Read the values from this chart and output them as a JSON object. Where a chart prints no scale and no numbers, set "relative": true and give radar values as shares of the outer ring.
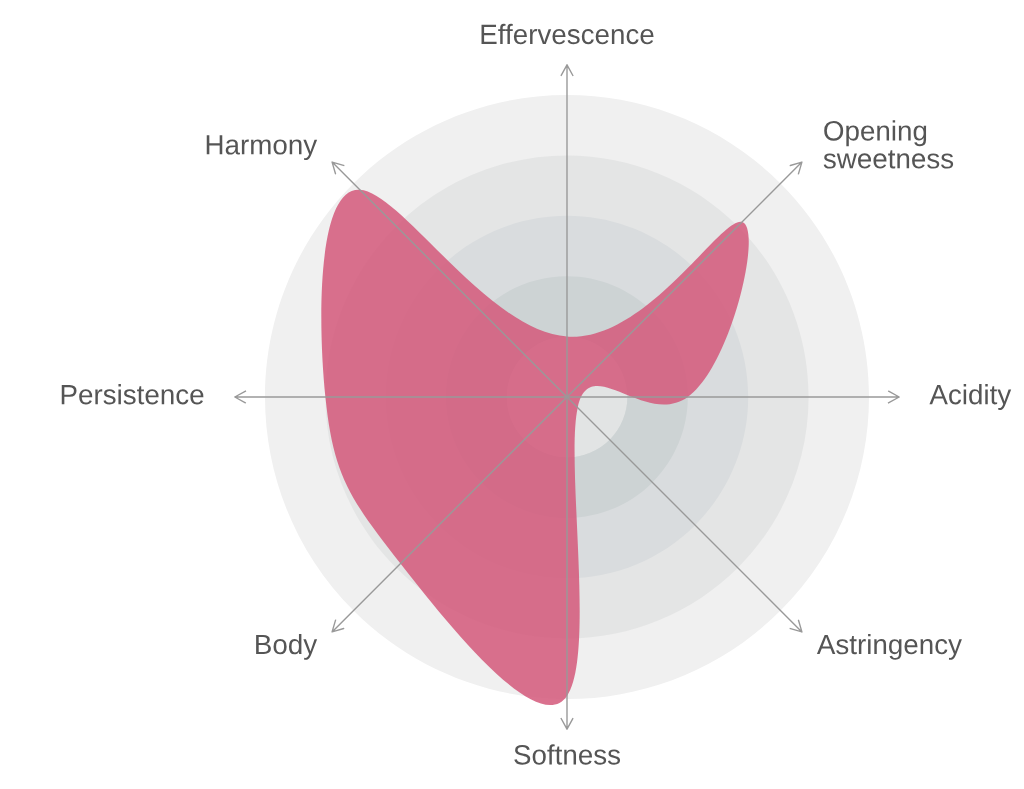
{
  "chart_data": {
    "type": "radar",
    "relative": true,
    "grid": true,
    "legend": false,
    "categories": [
      "Effervescence",
      "Opening\nsweetness",
      "Acidity",
      "Astringency",
      "Softness",
      "Body",
      "Persistence",
      "Harmony"
    ],
    "series": [
      {
        "color": "#d4587a",
        "values": [
          0.2,
          0.82,
          0.4,
          0.05,
          0.99,
          0.78,
          0.8,
          0.97
        ]
      }
    ]
  }
}
